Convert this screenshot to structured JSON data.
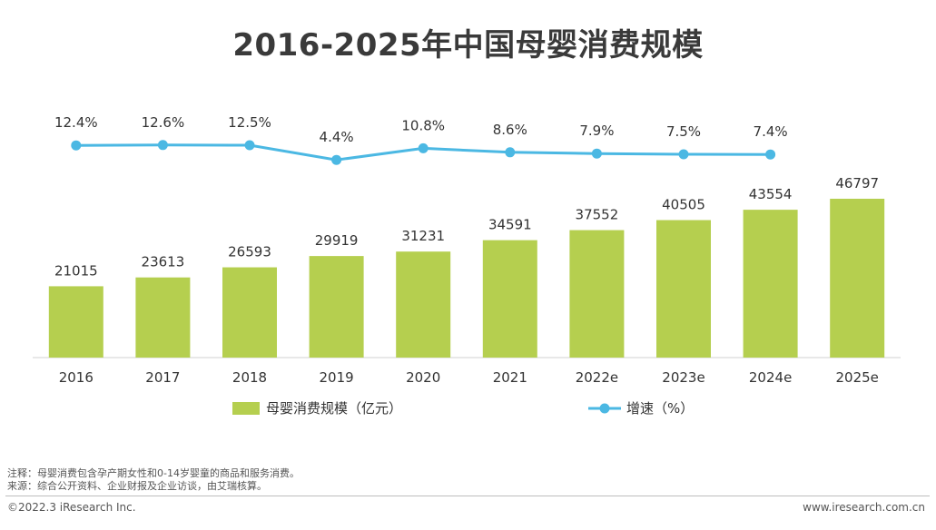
{
  "chart_data": {
    "type": "bar",
    "title": "2016-2025年中国母婴消费规模",
    "categories": [
      "2016",
      "2017",
      "2018",
      "2019",
      "2020",
      "2021",
      "2022e",
      "2023e",
      "2024e",
      "2025e"
    ],
    "series": [
      {
        "name": "母婴消费规模（亿元）",
        "type": "bar",
        "values": [
          21015,
          23613,
          26593,
          29919,
          31231,
          34591,
          37552,
          40505,
          43554,
          46797
        ],
        "color": "#b5cf4f"
      },
      {
        "name": "增速（%）",
        "type": "line",
        "values": [
          null,
          12.4,
          12.6,
          12.5,
          4.4,
          10.8,
          8.6,
          7.9,
          7.5,
          7.4
        ],
        "labels": [
          "",
          "12.4%",
          "12.6%",
          "12.5%",
          "4.4%",
          "10.8%",
          "8.6%",
          "7.9%",
          "7.5%",
          "7.4%"
        ],
        "color": "#4bb8e3"
      }
    ],
    "legend_position": "bottom",
    "grid": false
  },
  "notes": {
    "line1": "注释：母婴消费包含孕产期女性和0-14岁婴童的商品和服务消费。",
    "line2": "来源：综合公开资料、企业财报及企业访谈，由艾瑞核算。"
  },
  "footer": {
    "copyright": "©2022.3 iResearch Inc.",
    "website": "www.iresearch.com.cn"
  }
}
